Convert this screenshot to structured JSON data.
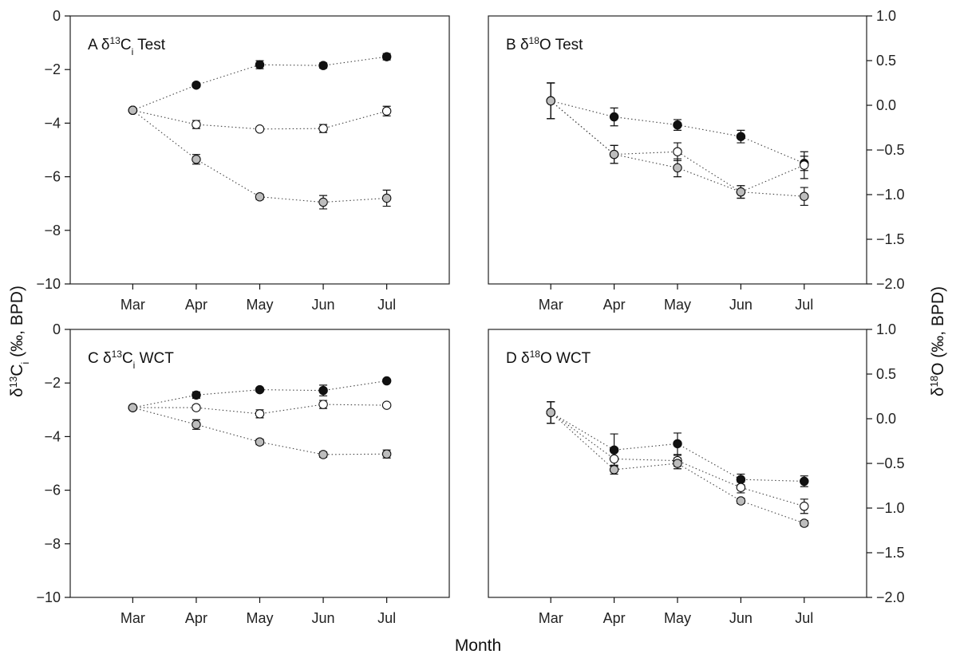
{
  "xlabel": "Month",
  "ylabel_left": "δ13Ci (‰, BPD)",
  "ylabel_right": "δ18O (‰, BPD)",
  "colors": {
    "black": "#111111",
    "open": "#ffffff",
    "gray": "#bdbdbd"
  },
  "chart_data": [
    {
      "type": "line",
      "panel": "A",
      "title_main": "δ",
      "title_sup": "13",
      "title_after": "C",
      "title_sub": "i",
      "title_tail": " Test",
      "categories": [
        "Mar",
        "Apr",
        "May",
        "Jun",
        "Jul"
      ],
      "ylim": [
        -10,
        0
      ],
      "yticks": [
        "0",
        "−2",
        "−4",
        "−6",
        "−8",
        "−10"
      ],
      "ytick_values": [
        0,
        -2,
        -4,
        -6,
        -8,
        -10
      ],
      "y_axis_side": "left",
      "grid": false,
      "series": [
        {
          "marker": "black",
          "values": [
            -3.52,
            -2.58,
            -1.82,
            -1.85,
            -1.52
          ],
          "errors": [
            0.05,
            0.08,
            0.15,
            0.1,
            0.12
          ]
        },
        {
          "marker": "open",
          "values": [
            -3.52,
            -4.05,
            -4.22,
            -4.2,
            -3.55
          ],
          "errors": [
            0.05,
            0.15,
            0.08,
            0.15,
            0.18
          ]
        },
        {
          "marker": "gray",
          "values": [
            -3.52,
            -5.35,
            -6.75,
            -6.95,
            -6.8
          ],
          "errors": [
            0.05,
            0.18,
            0.1,
            0.25,
            0.3
          ]
        }
      ]
    },
    {
      "type": "line",
      "panel": "B",
      "title_main": "δ",
      "title_sup": "18",
      "title_after": "O",
      "title_sub": "",
      "title_tail": " Test",
      "categories": [
        "Mar",
        "Apr",
        "May",
        "Jun",
        "Jul"
      ],
      "ylim": [
        -2,
        1
      ],
      "yticks": [
        "1.0",
        "0.5",
        "0.0",
        "−0.5",
        "−1.0",
        "−1.5",
        "−2.0"
      ],
      "ytick_values": [
        1,
        0.5,
        0,
        -0.5,
        -1,
        -1.5,
        -2
      ],
      "y_axis_side": "right",
      "grid": false,
      "series": [
        {
          "marker": "black",
          "values": [
            0.05,
            -0.13,
            -0.22,
            -0.35,
            -0.65
          ],
          "errors": [
            0.2,
            0.1,
            0.06,
            0.07,
            0.08
          ]
        },
        {
          "marker": "open",
          "values": [
            0.05,
            -0.55,
            -0.52,
            -0.97,
            -0.67
          ],
          "errors": [
            0.2,
            0.1,
            0.1,
            0.07,
            0.15
          ]
        },
        {
          "marker": "gray",
          "values": [
            0.05,
            -0.55,
            -0.7,
            -0.97,
            -1.02
          ],
          "errors": [
            0.2,
            0.1,
            0.1,
            0.07,
            0.1
          ]
        }
      ]
    },
    {
      "type": "line",
      "panel": "C",
      "title_main": "δ",
      "title_sup": "13",
      "title_after": "C",
      "title_sub": "i",
      "title_tail": " WCT",
      "categories": [
        "Mar",
        "Apr",
        "May",
        "Jun",
        "Jul"
      ],
      "ylim": [
        -10,
        0
      ],
      "yticks": [
        "0",
        "−2",
        "−4",
        "−6",
        "−8",
        "−10"
      ],
      "ytick_values": [
        0,
        -2,
        -4,
        -6,
        -8,
        -10
      ],
      "y_axis_side": "left",
      "grid": false,
      "series": [
        {
          "marker": "black",
          "values": [
            -2.92,
            -2.45,
            -2.25,
            -2.28,
            -1.92
          ],
          "errors": [
            0.05,
            0.12,
            0.06,
            0.2,
            0.06
          ]
        },
        {
          "marker": "open",
          "values": [
            -2.92,
            -2.92,
            -3.15,
            -2.8,
            -2.83
          ],
          "errors": [
            0.05,
            0.08,
            0.15,
            0.15,
            0.06
          ]
        },
        {
          "marker": "gray",
          "values": [
            -2.92,
            -3.55,
            -4.2,
            -4.67,
            -4.65
          ],
          "errors": [
            0.05,
            0.18,
            0.1,
            0.1,
            0.15
          ]
        }
      ]
    },
    {
      "type": "line",
      "panel": "D",
      "title_main": "δ",
      "title_sup": "18",
      "title_after": "O",
      "title_sub": "",
      "title_tail": " WCT",
      "categories": [
        "Mar",
        "Apr",
        "May",
        "Jun",
        "Jul"
      ],
      "ylim": [
        -2,
        1
      ],
      "yticks": [
        "1.0",
        "0.5",
        "0.0",
        "−0.5",
        "−1.0",
        "−1.5",
        "−2.0"
      ],
      "ytick_values": [
        1,
        0.5,
        0,
        -0.5,
        -1,
        -1.5,
        -2
      ],
      "y_axis_side": "right",
      "grid": false,
      "series": [
        {
          "marker": "black",
          "values": [
            0.07,
            -0.35,
            -0.28,
            -0.68,
            -0.7
          ],
          "errors": [
            0.12,
            0.18,
            0.12,
            0.06,
            0.06
          ]
        },
        {
          "marker": "open",
          "values": [
            0.07,
            -0.45,
            -0.47,
            -0.77,
            -0.98
          ],
          "errors": [
            0.12,
            0.08,
            0.06,
            0.06,
            0.08
          ]
        },
        {
          "marker": "gray",
          "values": [
            0.07,
            -0.57,
            -0.5,
            -0.92,
            -1.17
          ],
          "errors": [
            0.12,
            0.05,
            0.06,
            0.03,
            0.03
          ]
        }
      ]
    }
  ]
}
